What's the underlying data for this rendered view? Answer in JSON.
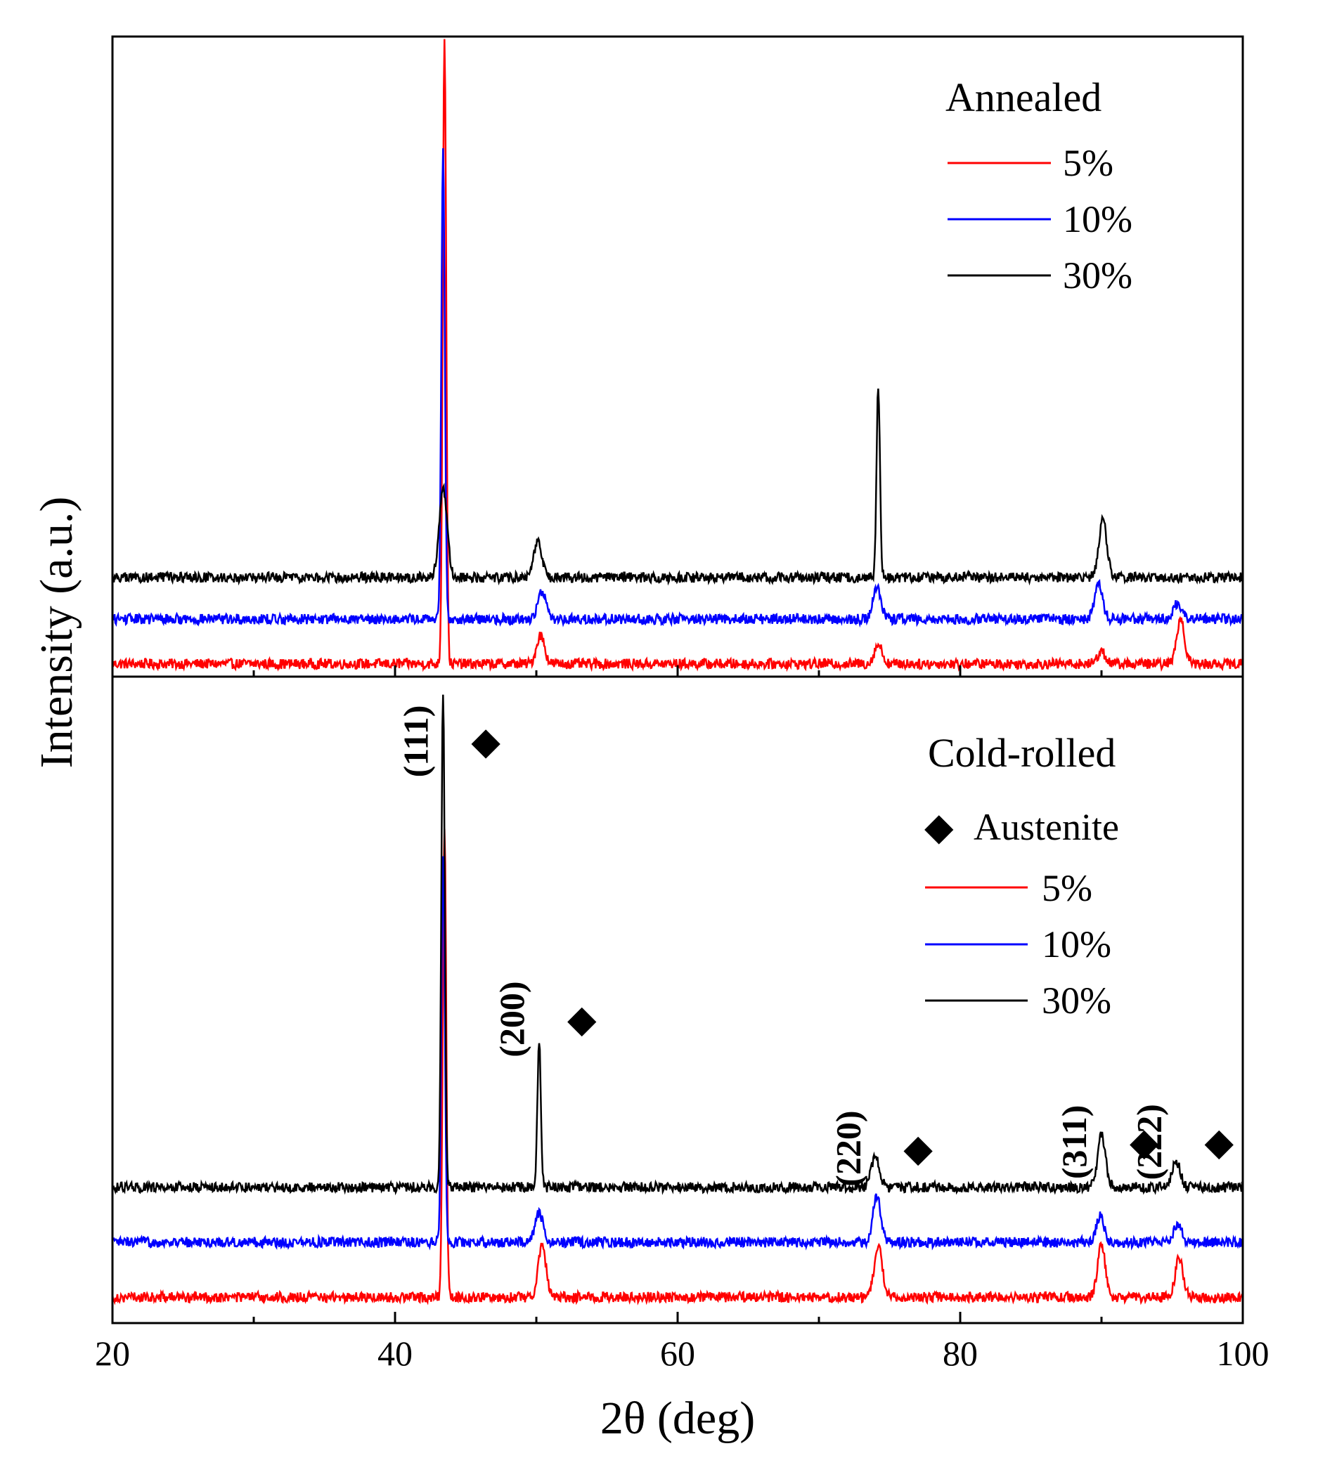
{
  "chart_data": {
    "type": "line",
    "xlabel": "2θ (deg)",
    "ylabel": "Intensity (a.u.)",
    "xlim": [
      20,
      100
    ],
    "xticks": [
      20,
      40,
      60,
      80,
      100
    ],
    "yticks_shown": false,
    "panels": [
      {
        "id": "annealed",
        "legend_title": "Annealed",
        "ylim": [
          0,
          100
        ],
        "series": [
          {
            "name": "5%",
            "color": "#ff0000",
            "baseline": 2,
            "peaks": [
              {
                "x": 43.5,
                "h": 98
              },
              {
                "x": 50.3,
                "h": 4.5
              },
              {
                "x": 74.2,
                "h": 3
              },
              {
                "x": 90.0,
                "h": 2
              },
              {
                "x": 95.6,
                "h": 7
              }
            ]
          },
          {
            "name": "10%",
            "color": "#0000ff",
            "baseline": 9,
            "peaks": [
              {
                "x": 43.4,
                "h": 73
              },
              {
                "x": 50.4,
                "h": 4.5
              },
              {
                "x": 74.1,
                "h": 5
              },
              {
                "x": 89.8,
                "h": 5.5
              },
              {
                "x": 95.4,
                "h": 2.5
              }
            ]
          },
          {
            "name": "30%",
            "color": "#000000",
            "baseline": 15.5,
            "peaks": [
              {
                "x": 43.4,
                "h": 14
              },
              {
                "x": 50.1,
                "h": 5.5
              },
              {
                "x": 74.2,
                "h": 30
              },
              {
                "x": 90.1,
                "h": 9
              }
            ]
          }
        ]
      },
      {
        "id": "cold-rolled",
        "legend_title": "Cold-rolled",
        "marker_legend": {
          "symbol": "◆",
          "label": "Austenite"
        },
        "ylim": [
          0,
          100
        ],
        "series": [
          {
            "name": "5%",
            "color": "#ff0000",
            "baseline": 4,
            "peaks": [
              {
                "x": 43.5,
                "h": 73
              },
              {
                "x": 50.4,
                "h": 8
              },
              {
                "x": 74.2,
                "h": 8
              },
              {
                "x": 90.0,
                "h": 8
              },
              {
                "x": 95.5,
                "h": 6
              }
            ]
          },
          {
            "name": "10%",
            "color": "#0000ff",
            "baseline": 12.5,
            "peaks": [
              {
                "x": 43.4,
                "h": 60
              },
              {
                "x": 50.2,
                "h": 4.5
              },
              {
                "x": 74.1,
                "h": 7
              },
              {
                "x": 89.9,
                "h": 4
              },
              {
                "x": 95.4,
                "h": 3
              }
            ]
          },
          {
            "name": "30%",
            "color": "#000000",
            "baseline": 21,
            "peaks": [
              {
                "x": 43.4,
                "h": 77
              },
              {
                "x": 50.2,
                "h": 23
              },
              {
                "x": 74.0,
                "h": 5
              },
              {
                "x": 90.0,
                "h": 8
              },
              {
                "x": 95.3,
                "h": 4
              }
            ]
          }
        ],
        "annotations": [
          {
            "label": "(111)",
            "x": 43.4,
            "y": 90
          },
          {
            "label": "(200)",
            "x": 50.2,
            "y": 47
          },
          {
            "label": "(220)",
            "x": 74.0,
            "y": 27
          },
          {
            "label": "(311)",
            "x": 90.0,
            "y": 28
          },
          {
            "label": "(222)",
            "x": 95.3,
            "y": 28
          }
        ]
      }
    ]
  }
}
